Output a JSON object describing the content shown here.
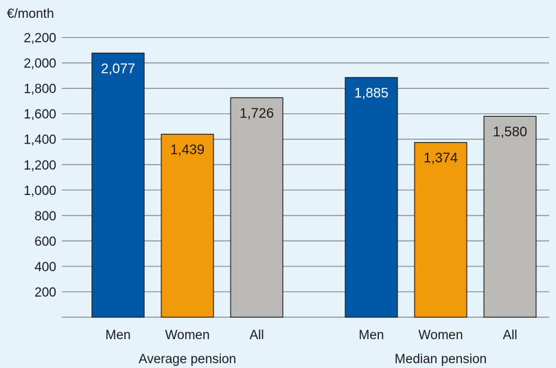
{
  "chart_data": {
    "type": "bar",
    "unit_label": "€/month",
    "groups": [
      {
        "label": "Average pension",
        "bars": [
          {
            "category": "Men",
            "value": 2077,
            "label": "2,077",
            "color": "#0058a6",
            "label_color": "#ffffff"
          },
          {
            "category": "Women",
            "value": 1439,
            "label": "1,439",
            "color": "#f29b0a",
            "label_color": "#1a1a1a"
          },
          {
            "category": "All",
            "value": 1726,
            "label": "1,726",
            "color": "#bcbab7",
            "label_color": "#1a1a1a"
          }
        ]
      },
      {
        "label": "Median pension",
        "bars": [
          {
            "category": "Men",
            "value": 1885,
            "label": "1,885",
            "color": "#0058a6",
            "label_color": "#ffffff"
          },
          {
            "category": "Women",
            "value": 1374,
            "label": "1,374",
            "color": "#f29b0a",
            "label_color": "#1a1a1a"
          },
          {
            "category": "All",
            "value": 1580,
            "label": "1,580",
            "color": "#bcbab7",
            "label_color": "#1a1a1a"
          }
        ]
      }
    ],
    "yticks": [
      {
        "value": 200,
        "label": "200"
      },
      {
        "value": 400,
        "label": "400"
      },
      {
        "value": 600,
        "label": "600"
      },
      {
        "value": 800,
        "label": "800"
      },
      {
        "value": 1000,
        "label": "1,000"
      },
      {
        "value": 1200,
        "label": "1,200"
      },
      {
        "value": 1400,
        "label": "1,400"
      },
      {
        "value": 1600,
        "label": "1,600"
      },
      {
        "value": 1800,
        "label": "1,800"
      },
      {
        "value": 2000,
        "label": "2,000"
      },
      {
        "value": 2200,
        "label": "2,200"
      }
    ],
    "ylim": [
      0,
      2200
    ],
    "grid": true,
    "colors": {
      "background": "#e6f3fb",
      "gridline": "#7f8184",
      "text": "#1a1a1a"
    }
  }
}
